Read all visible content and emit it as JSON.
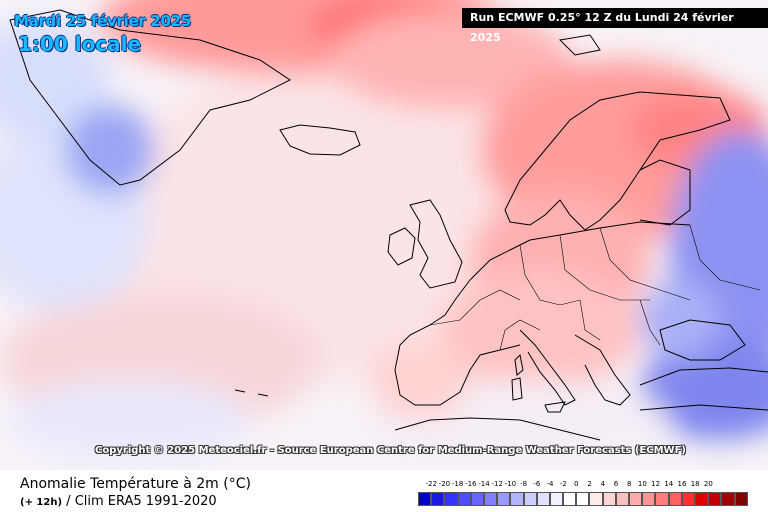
{
  "header": {
    "date": "Mardi 25 février 2025",
    "time": "1:00 locale",
    "run": "Run ECMWF 0.25° 12 Z du Lundi 24 février 2025"
  },
  "copyright": "Copyright © 2025 Meteociel.fr - Source European Centre for Medium-Range Weather Forecasts (ECMWF)",
  "footer": {
    "title": "Anomalie Température à 2m (°C)",
    "lead": "(+ 12h)",
    "clim": " / Clim ERA5 1991-2020"
  },
  "legend": {
    "ticks": [
      "-22",
      "-20",
      "-18",
      "-16",
      "-14",
      "-12",
      "-10",
      "-8",
      "-6",
      "-4",
      "-2",
      "0",
      "2",
      "4",
      "6",
      "8",
      "10",
      "12",
      "14",
      "16",
      "18",
      "20"
    ],
    "colors": [
      "#0000c8",
      "#1a1ae0",
      "#3333ff",
      "#4d4dff",
      "#6666ff",
      "#8080ff",
      "#9999ff",
      "#b3b3ff",
      "#ccccff",
      "#e0e0ff",
      "#f0f0ff",
      "#ffffff",
      "#ffffff",
      "#ffeaea",
      "#ffd4d4",
      "#ffbfbf",
      "#ffaaaa",
      "#ff9494",
      "#ff7f7f",
      "#ff6060",
      "#ff3030",
      "#e00000",
      "#c00000",
      "#a00000",
      "#800000"
    ]
  },
  "map": {
    "regions": [
      "greenland",
      "iceland",
      "british-isles",
      "scandinavia",
      "europe",
      "turkey",
      "north-africa"
    ]
  }
}
